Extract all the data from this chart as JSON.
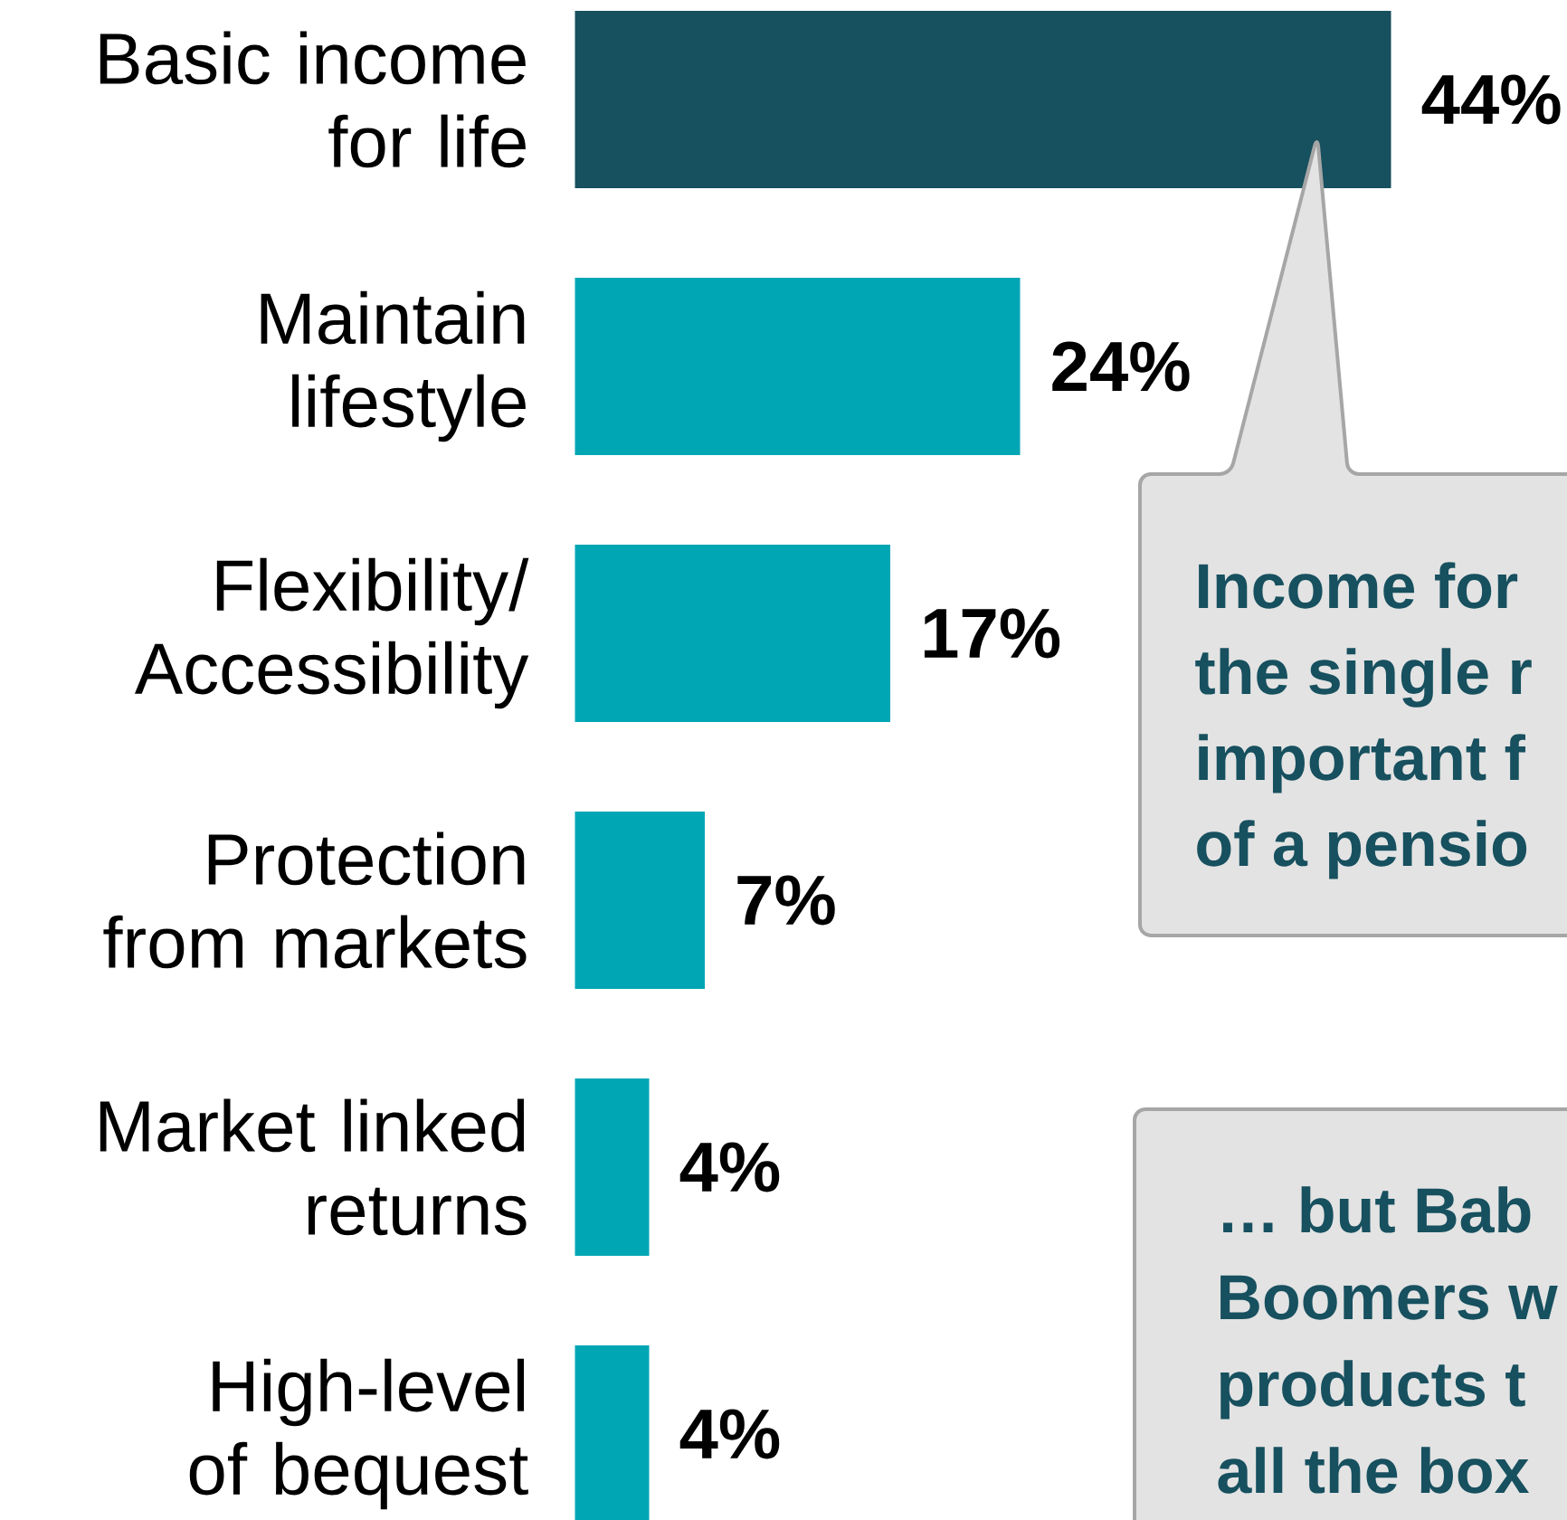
{
  "chart_data": {
    "type": "bar",
    "orientation": "horizontal",
    "tick_labels": "y",
    "categories": [
      "Basic income for life",
      "Maintain lifestyle",
      "Flexibility/ Accessibility",
      "Protection from markets",
      "Market linked returns",
      "High-level of bequest"
    ],
    "values": [
      44,
      24,
      17,
      7,
      4,
      4
    ],
    "colors": [
      "#17505f",
      "#00a6b4",
      "#00a6b4",
      "#00a6b4",
      "#00a6b4",
      "#00a6b4"
    ],
    "value_labels": [
      "44%",
      "24%",
      "17%",
      "7%",
      "4%",
      "4%"
    ],
    "annotations": [
      "Income for",
      "the single r",
      "important f",
      "of a pensio",
      "… but Bab",
      "Boomers w",
      "products t",
      "all the box"
    ]
  }
}
